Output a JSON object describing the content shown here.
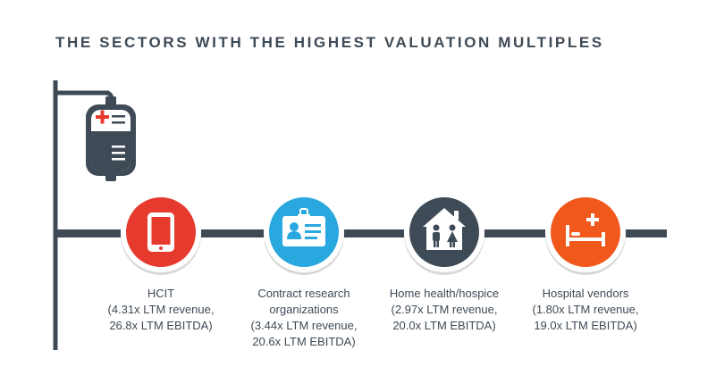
{
  "title": "THE SECTORS WITH THE HIGHEST VALUATION MULTIPLES",
  "colors": {
    "line": "#3e4a56",
    "hcit": "#e63a2e",
    "cro": "#29a8e0",
    "home": "#3e4a56",
    "hospital": "#f0581c"
  },
  "sectors": [
    {
      "icon": "tablet-icon",
      "lines": [
        "HCIT",
        "(4.31x LTM revenue,",
        "26.8x LTM EBITDA)"
      ]
    },
    {
      "icon": "id-badge-icon",
      "lines": [
        "Contract research",
        "organizations",
        "(3.44x LTM revenue,",
        "20.6x LTM EBITDA)"
      ]
    },
    {
      "icon": "house-family-icon",
      "lines": [
        "Home health/hospice",
        "(2.97x LTM revenue,",
        "20.0x LTM EBITDA)"
      ]
    },
    {
      "icon": "hospital-bed-icon",
      "lines": [
        "Hospital vendors",
        "(1.80x LTM revenue,",
        "19.0x LTM EBITDA)"
      ]
    }
  ]
}
